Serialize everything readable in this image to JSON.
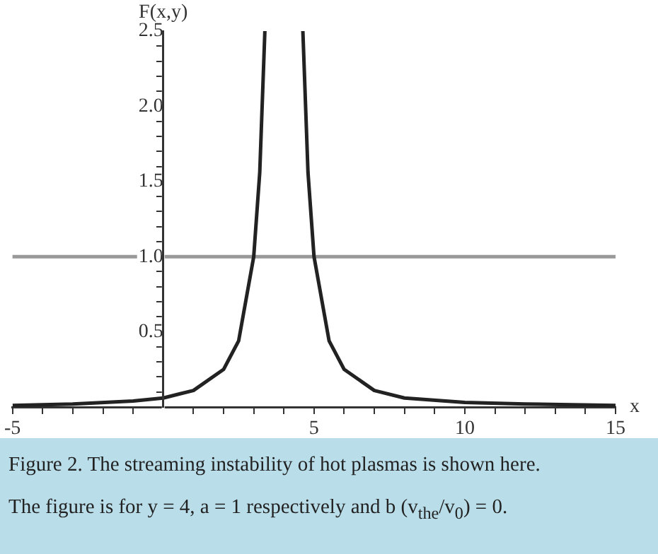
{
  "chart_data": {
    "type": "line",
    "xlabel": "x",
    "ylabel": "F(x,y)",
    "xlim": [
      -5,
      15
    ],
    "ylim": [
      0,
      2.5
    ],
    "xticks": [
      -5,
      {
        "value": -4,
        "label": null
      },
      {
        "value": -3,
        "label": null
      },
      {
        "value": -2,
        "label": null
      },
      {
        "value": -1,
        "label": null
      },
      {
        "value": 0,
        "label": null
      },
      {
        "value": 1,
        "label": null
      },
      {
        "value": 2,
        "label": null
      },
      {
        "value": 3,
        "label": null
      },
      {
        "value": 4,
        "label": null
      },
      5,
      {
        "value": 6,
        "label": null
      },
      {
        "value": 7,
        "label": null
      },
      {
        "value": 8,
        "label": null
      },
      {
        "value": 9,
        "label": null
      },
      10,
      {
        "value": 11,
        "label": null
      },
      {
        "value": 12,
        "label": null
      },
      {
        "value": 13,
        "label": null
      },
      {
        "value": 14,
        "label": null
      },
      15
    ],
    "yticks": [
      {
        "value": 0,
        "label": null
      },
      {
        "value": 0.1,
        "label": null
      },
      {
        "value": 0.2,
        "label": null
      },
      {
        "value": 0.3,
        "label": null
      },
      {
        "value": 0.4,
        "label": null
      },
      {
        "value": 0.5,
        "label": "0.5"
      },
      {
        "value": 0.6,
        "label": null
      },
      {
        "value": 0.7,
        "label": null
      },
      {
        "value": 0.8,
        "label": null
      },
      {
        "value": 0.9,
        "label": null
      },
      {
        "value": 1,
        "label": "1.0"
      },
      {
        "value": 1.1,
        "label": null
      },
      {
        "value": 1.2,
        "label": null
      },
      {
        "value": 1.3,
        "label": null
      },
      {
        "value": 1.4,
        "label": null
      },
      {
        "value": 1.5,
        "label": "1.5"
      },
      {
        "value": 1.6,
        "label": null
      },
      {
        "value": 1.7,
        "label": null
      },
      {
        "value": 1.8,
        "label": null
      },
      {
        "value": 1.9,
        "label": null
      },
      {
        "value": 2,
        "label": "2.0"
      },
      {
        "value": 2.1,
        "label": null
      },
      {
        "value": 2.2,
        "label": null
      },
      {
        "value": 2.3,
        "label": null
      },
      {
        "value": 2.4,
        "label": null
      },
      {
        "value": 2.5,
        "label": "2.5"
      }
    ],
    "x": [
      -5,
      -3,
      -1,
      0,
      1,
      2,
      2.5,
      3,
      3.2,
      3.37,
      4,
      4.63,
      4.8,
      5,
      5.5,
      6,
      7,
      8,
      10,
      12,
      15
    ],
    "series": [
      {
        "color": "#222222",
        "values": [
          0.01,
          0.02,
          0.04,
          0.06,
          0.11,
          0.25,
          0.44,
          1.0,
          1.56,
          2.5,
          null,
          2.5,
          1.56,
          1.0,
          0.44,
          0.25,
          0.11,
          0.06,
          0.03,
          0.02,
          0.01
        ]
      }
    ],
    "ref_lines": [
      {
        "axis": "y",
        "value": 1,
        "color": "#999999"
      }
    ],
    "annotations": [
      "Figure 2. The streaming instability of hot plasmas is shown here.",
      "The figure is for y = 4, a = 1 respectively and b (v$_{the}$/v$_{0}$) = 0."
    ]
  }
}
